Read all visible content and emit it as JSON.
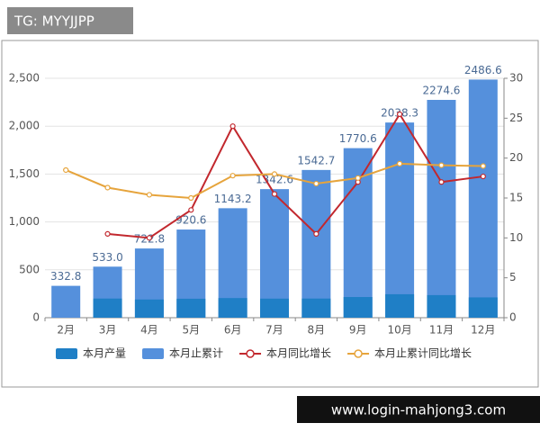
{
  "overlay": {
    "tag": "TG: MYYJJPP",
    "url": "www.login-mahjong3.com"
  },
  "chart_data": {
    "type": "bar-line",
    "categories": [
      "2月",
      "3月",
      "4月",
      "5月",
      "6月",
      "7月",
      "8月",
      "9月",
      "10月",
      "11月",
      "12月"
    ],
    "series": [
      {
        "name": "本月产量",
        "color": "#1f7fc6",
        "type": "bar",
        "values": [
          null,
          200,
          190,
          198,
          205,
          199,
          200,
          216,
          245,
          236,
          212
        ]
      },
      {
        "name": "本月止累计",
        "color": "#5590dc",
        "type": "bar",
        "values": [
          332.8,
          533.0,
          722.8,
          920.6,
          1143.2,
          1342.6,
          1542.7,
          1770.6,
          2038.3,
          2274.6,
          2486.6
        ],
        "value_labels": [
          "332.8",
          "533.0",
          "722.8",
          "920.6",
          "1143.2",
          "1342.6",
          "1542.7",
          "1770.6",
          "2038.3",
          "2274.6",
          "2486.6"
        ]
      },
      {
        "name": "本月同比增长",
        "color": "#c2282e",
        "type": "line",
        "axis": "y2",
        "values": [
          null,
          10.5,
          10,
          13.5,
          24,
          15.5,
          10.5,
          17,
          25.5,
          17,
          17.7
        ]
      },
      {
        "name": "本月止累计同比增长",
        "color": "#e6a43c",
        "type": "line",
        "axis": "y2",
        "values": [
          18.5,
          16.3,
          15.4,
          15,
          17.8,
          18,
          16.8,
          17.5,
          19.3,
          19.1,
          19
        ]
      }
    ],
    "ylim": [
      0,
      2500
    ],
    "yticks": [
      0,
      500,
      {
        "value": 1000,
        "label": "1,000"
      },
      {
        "value": 1500,
        "label": "1,500"
      },
      {
        "value": 2000,
        "label": "2,000"
      },
      {
        "value": 2500,
        "label": "2,500"
      }
    ],
    "y2lim": [
      0,
      30
    ],
    "y2ticks": [
      0,
      5,
      10,
      15,
      20,
      25,
      30
    ],
    "grid": true,
    "legend": "bottom"
  }
}
